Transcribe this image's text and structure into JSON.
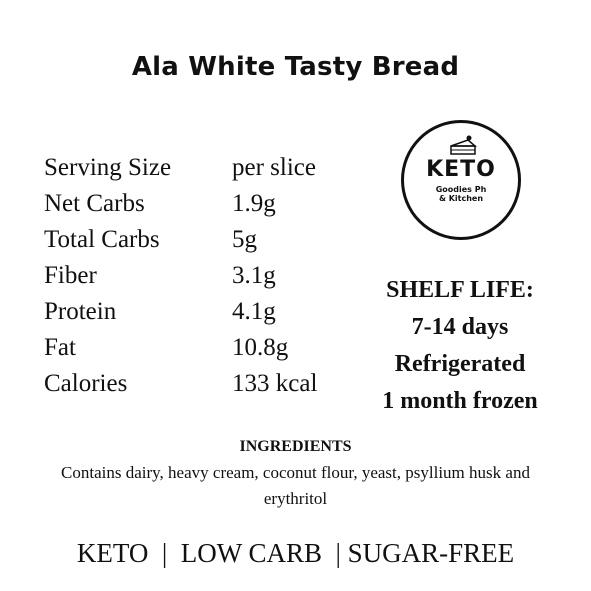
{
  "title": "Ala White Tasty Bread",
  "nutrition": [
    {
      "label": "Serving Size",
      "value": "per slice"
    },
    {
      "label": "Net Carbs",
      "value": "1.9g"
    },
    {
      "label": "Total Carbs",
      "value": "5g"
    },
    {
      "label": "Fiber",
      "value": "3.1g"
    },
    {
      "label": "Protein",
      "value": "4.1g"
    },
    {
      "label": "Fat",
      "value": "10.8g"
    },
    {
      "label": "Calories",
      "value": "133 kcal"
    }
  ],
  "logo": {
    "keto": "KETO",
    "line1": "Goodies Ph",
    "line2": "& Kitchen",
    "icon": "cake-slice-icon"
  },
  "shelf_life": {
    "heading": "SHELF LIFE:",
    "line1": "7-14 days",
    "line2": "Refrigerated",
    "line3": "1 month frozen"
  },
  "ingredients": {
    "heading": "INGREDIENTS",
    "text": "Contains dairy, heavy cream, coconut flour, yeast, psyllium husk and erythritol"
  },
  "footer": "KETO  |  LOW CARB  | SUGAR-FREE"
}
